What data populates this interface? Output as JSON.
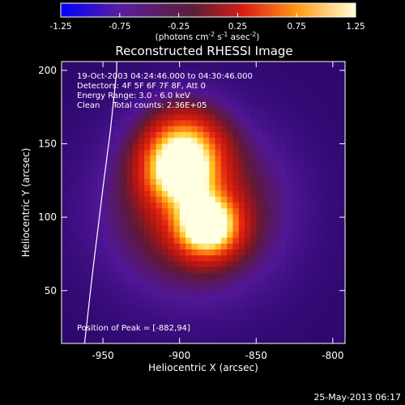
{
  "colorbar": {
    "ticks": [
      "-1.25",
      "-0.75",
      "-0.25",
      "0.25",
      "0.75",
      "1.25"
    ],
    "label_main": "(photons cm",
    "label_exp1": "-2",
    "label_mid": " s",
    "label_exp2": "-1",
    "label_tail": " asec",
    "label_exp3": "-2",
    "label_end": ")",
    "range": [
      -1.25,
      1.25
    ]
  },
  "title": "Reconstructed RHESSI Image",
  "annotations": {
    "time": "19-Oct-2003 04:24:46.000 to 04:30:46.000",
    "detectors": "Detectors: 4F 5F 6F 7F 8F, Att 0",
    "energy": "Energy Range: 3.0 - 6.0 keV",
    "clean": "Clean     Total counts: 2.36E+05",
    "peak": "Position of Peak = [-882,94]"
  },
  "footer": {
    "timestamp": "25-May-2013 06:17"
  },
  "chart_data": {
    "type": "heatmap",
    "title": "Reconstructed RHESSI Image",
    "xlabel": "Heliocentric X (arcsec)",
    "ylabel": "Heliocentric Y (arcsec)",
    "xlim": [
      -977,
      -792
    ],
    "ylim": [
      14,
      206
    ],
    "x_ticks": [
      -950,
      -900,
      -850,
      -800
    ],
    "y_ticks": [
      50,
      100,
      150,
      200
    ],
    "x_tick_labels": [
      "-950",
      "-900",
      "-850",
      "-800"
    ],
    "y_tick_labels": [
      "50",
      "100",
      "150",
      "200"
    ],
    "peak": {
      "x": -882,
      "y": 94
    },
    "sources": [
      {
        "x": -882,
        "y": 94,
        "amplitude": 1.0,
        "sigma": 14
      },
      {
        "x": -900,
        "y": 130,
        "amplitude": 0.75,
        "sigma": 16
      },
      {
        "x": -897,
        "y": 150,
        "amplitude": 0.55,
        "sigma": 18
      },
      {
        "x": -890,
        "y": 106,
        "amplitude": 0.4,
        "sigma": 40
      }
    ],
    "limb": [
      [
        -962,
        14
      ],
      [
        -957,
        60
      ],
      [
        -950,
        120
      ],
      [
        -945,
        160
      ],
      [
        -941,
        200
      ],
      [
        -941,
        206
      ]
    ],
    "grid": false
  }
}
